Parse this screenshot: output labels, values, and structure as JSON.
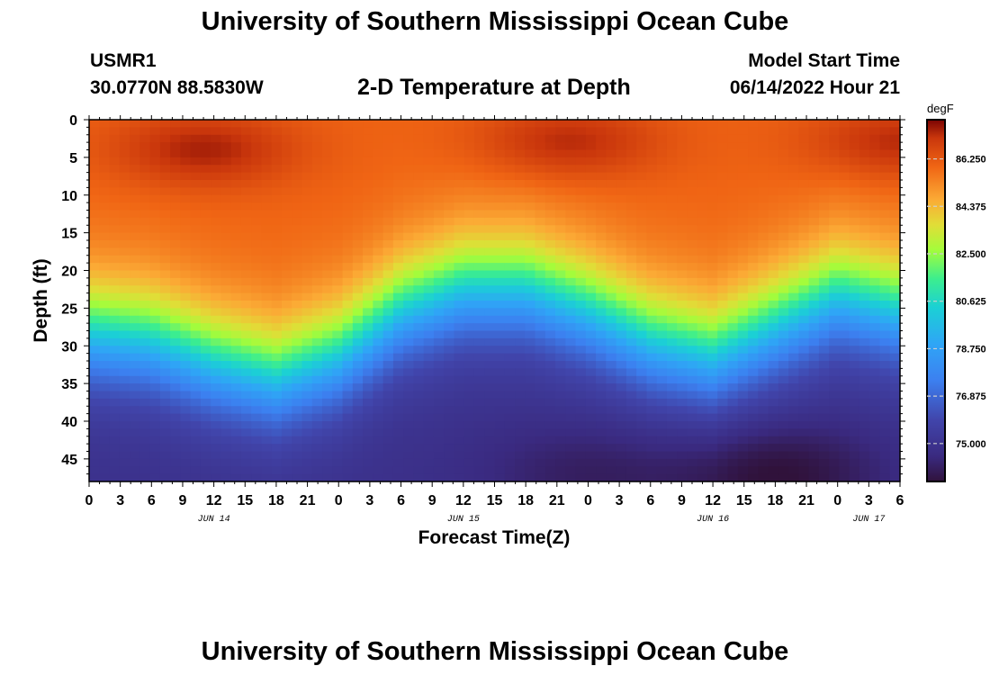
{
  "header": {
    "title_top": "University of Southern Mississippi Ocean Cube",
    "title_bottom": "University of Southern Mississippi Ocean Cube",
    "station": "USMR1",
    "coords": "30.0770N  88.5830W",
    "plot_title": "2-D Temperature at Depth",
    "model_label": "Model Start Time",
    "model_time": "06/14/2022 Hour 21"
  },
  "chart_data": {
    "type": "heatmap",
    "title": "2-D Temperature at Depth",
    "xlabel": "Forecast Time(Z)",
    "ylabel": "Depth (ft)",
    "x_start_hour_jun14": 0,
    "x_end_hour_jun14": 78,
    "x_ticks": [
      "0",
      "3",
      "6",
      "9",
      "12",
      "15",
      "18",
      "21",
      "0",
      "3",
      "6",
      "9",
      "12",
      "15",
      "18",
      "21",
      "0",
      "3",
      "6",
      "9",
      "12",
      "15",
      "18",
      "21",
      "0",
      "3",
      "6"
    ],
    "date_labels": [
      {
        "label": "JUN 14",
        "hour": 12
      },
      {
        "label": "JUN 15",
        "hour": 36
      },
      {
        "label": "JUN 16",
        "hour": 60
      },
      {
        "label": "JUN 17",
        "hour": 75
      }
    ],
    "y_ticks": [
      0,
      5,
      10,
      15,
      20,
      25,
      30,
      35,
      40,
      45
    ],
    "ylim": [
      0,
      48
    ],
    "colorbar": {
      "unit": "degF",
      "min": 73.5,
      "max": 87.8,
      "ticks": [
        86.25,
        84.375,
        82.5,
        80.625,
        78.75,
        76.875,
        75.0
      ],
      "tick_labels": [
        "86.250",
        "84.375",
        "82.500",
        "80.625",
        "78.750",
        "76.875",
        "75.000"
      ]
    },
    "thermocline_depth_ft": [
      {
        "hour": 0,
        "depth": 28
      },
      {
        "hour": 6,
        "depth": 29
      },
      {
        "hour": 12,
        "depth": 32
      },
      {
        "hour": 18,
        "depth": 34
      },
      {
        "hour": 24,
        "depth": 31
      },
      {
        "hour": 30,
        "depth": 25
      },
      {
        "hour": 36,
        "depth": 22
      },
      {
        "hour": 42,
        "depth": 22
      },
      {
        "hour": 48,
        "depth": 25
      },
      {
        "hour": 54,
        "depth": 29
      },
      {
        "hour": 60,
        "depth": 31
      },
      {
        "hour": 66,
        "depth": 27
      },
      {
        "hour": 72,
        "depth": 23
      },
      {
        "hour": 78,
        "depth": 25
      }
    ],
    "warm_cores": [
      {
        "hour": 11,
        "depth": 4,
        "value": 87.6
      },
      {
        "hour": 46,
        "depth": 3,
        "value": 87.5
      },
      {
        "hour": 78,
        "depth": 3,
        "value": 87.5
      }
    ],
    "cold_cores": [
      {
        "hour": 48,
        "depth": 47,
        "value": 74.2
      },
      {
        "hour": 66,
        "depth": 47,
        "value": 73.6
      }
    ]
  }
}
